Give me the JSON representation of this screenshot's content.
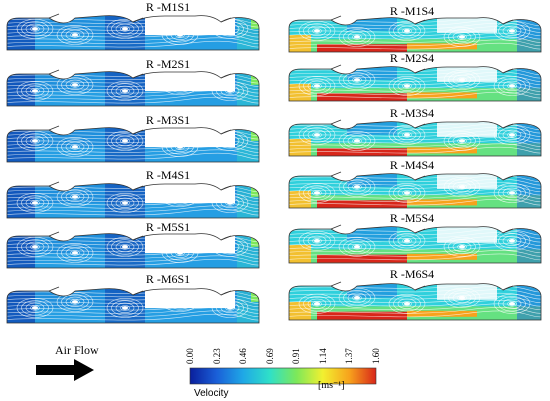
{
  "panels_left": [
    {
      "title": "R -M1S1"
    },
    {
      "title": "R -M2S1"
    },
    {
      "title": "R -M3S1"
    },
    {
      "title": "R -M4S1"
    },
    {
      "title": "R -M5S1"
    },
    {
      "title": "R -M6S1"
    }
  ],
  "panels_right": [
    {
      "title": "R -M1S4"
    },
    {
      "title": "R -M2S4"
    },
    {
      "title": "R -M3S4"
    },
    {
      "title": "R -M4S4"
    },
    {
      "title": "R -M5S4"
    },
    {
      "title": "R -M6S4"
    }
  ],
  "air_flow_label": "Air Flow",
  "colorbar": {
    "title": "Velocity",
    "unit": "[ms⁻¹]",
    "ticks": [
      "0.00",
      "0.23",
      "0.46",
      "0.69",
      "0.91",
      "1.14",
      "1.37",
      "1.60"
    ],
    "colors": [
      "#0a1f9c",
      "#1a5fd8",
      "#1fa8e6",
      "#2fe0c8",
      "#7ce85a",
      "#f2f030",
      "#f7a21c",
      "#d8261a"
    ]
  }
}
